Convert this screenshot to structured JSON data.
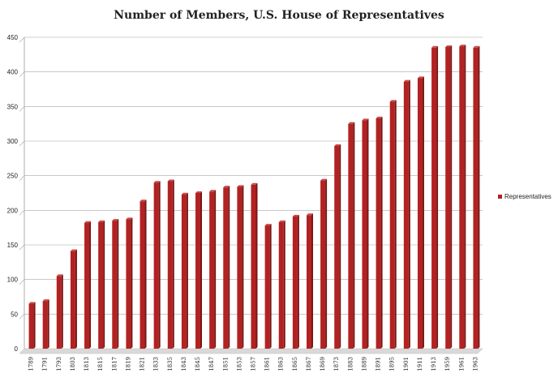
{
  "chart_data": {
    "type": "bar",
    "title": "Number of Members, U.S. House of Representatives",
    "categories": [
      "1789",
      "1791",
      "1793",
      "1803",
      "1813",
      "1815",
      "1817",
      "1819",
      "1821",
      "1833",
      "1835",
      "1843",
      "1845",
      "1847",
      "1851",
      "1853",
      "1857",
      "1861",
      "1863",
      "1865",
      "1867",
      "1869",
      "1873",
      "1883",
      "1889",
      "1891",
      "1895",
      "1901",
      "1911",
      "1913",
      "1959",
      "1961",
      "1963"
    ],
    "series": [
      {
        "name": "Representatives",
        "color": "#B22222",
        "values": [
          65,
          69,
          105,
          141,
          182,
          183,
          185,
          187,
          213,
          240,
          242,
          223,
          225,
          227,
          233,
          234,
          237,
          178,
          183,
          191,
          193,
          243,
          293,
          325,
          330,
          333,
          357,
          386,
          391,
          435,
          436,
          437,
          435
        ]
      }
    ],
    "ylim": [
      0,
      450
    ],
    "yticks": [
      0,
      50,
      100,
      150,
      200,
      250,
      300,
      350,
      400,
      450
    ],
    "grid": true,
    "legend_position": "right"
  }
}
